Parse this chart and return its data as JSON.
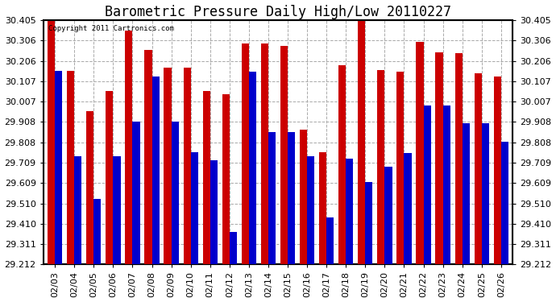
{
  "title": "Barometric Pressure Daily High/Low 20110227",
  "copyright": "Copyright 2011 Cartronics.com",
  "dates": [
    "02/03",
    "02/04",
    "02/05",
    "02/06",
    "02/07",
    "02/08",
    "02/09",
    "02/10",
    "02/11",
    "02/12",
    "02/13",
    "02/14",
    "02/15",
    "02/16",
    "02/17",
    "02/18",
    "02/19",
    "02/20",
    "02/21",
    "02/22",
    "02/23",
    "02/24",
    "02/25",
    "02/26"
  ],
  "highs": [
    30.405,
    30.157,
    29.96,
    30.06,
    30.355,
    30.258,
    30.175,
    30.175,
    30.06,
    30.045,
    30.29,
    30.29,
    30.28,
    29.87,
    29.76,
    30.185,
    30.405,
    30.16,
    30.155,
    30.3,
    30.25,
    30.245,
    30.145,
    30.13
  ],
  "lows": [
    30.157,
    29.74,
    29.53,
    29.74,
    29.91,
    30.13,
    29.91,
    29.76,
    29.72,
    29.37,
    30.155,
    29.86,
    29.86,
    29.74,
    29.44,
    29.73,
    29.615,
    29.69,
    29.755,
    29.99,
    29.99,
    29.9,
    29.9,
    29.81
  ],
  "ymin": 29.212,
  "ymax": 30.405,
  "yticks": [
    29.212,
    29.311,
    29.41,
    29.51,
    29.609,
    29.709,
    29.808,
    29.908,
    30.007,
    30.107,
    30.206,
    30.306,
    30.405
  ],
  "bar_color_high": "#cc0000",
  "bar_color_low": "#0000cc",
  "bg_color": "#ffffff",
  "grid_color": "#aaaaaa",
  "title_fontsize": 12,
  "tick_fontsize": 8
}
